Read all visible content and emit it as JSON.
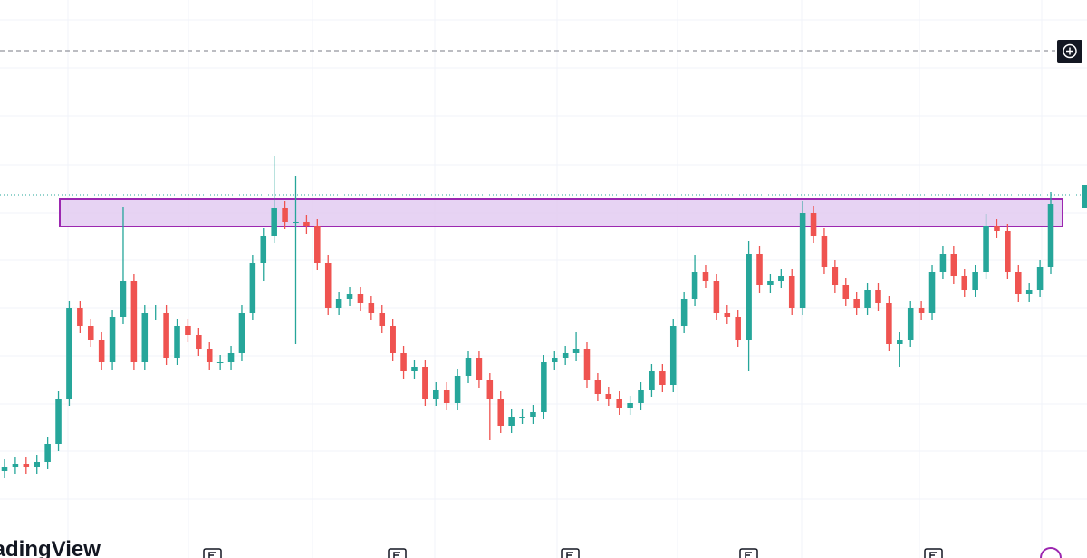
{
  "watermark": "TradingView",
  "chart_data": {
    "type": "candlestick",
    "ylim": [
      0,
      616
    ],
    "up_color": "#26a69a",
    "down_color": "#ef5350",
    "open": [
      96,
      101,
      104,
      101,
      106,
      126,
      176,
      276,
      256,
      241,
      216,
      266,
      306,
      216,
      271,
      271,
      221,
      256,
      246,
      231,
      216,
      216,
      226,
      271,
      326,
      356,
      386,
      371,
      371,
      366,
      326,
      276,
      286,
      291,
      281,
      271,
      256,
      226,
      206,
      211,
      176,
      186,
      171,
      201,
      221,
      196,
      176,
      146,
      156,
      156,
      161,
      216,
      221,
      226,
      231,
      196,
      181,
      176,
      166,
      171,
      186,
      206,
      191,
      256,
      286,
      316,
      306,
      271,
      266,
      241,
      336,
      301,
      306,
      311,
      276,
      381,
      356,
      321,
      301,
      286,
      276,
      296,
      281,
      236,
      241,
      276,
      271,
      316,
      336,
      311,
      296,
      316,
      366,
      361,
      316,
      291,
      296,
      321
    ],
    "close": [
      101,
      104,
      101,
      106,
      126,
      176,
      276,
      256,
      241,
      216,
      266,
      306,
      216,
      271,
      271,
      221,
      256,
      246,
      231,
      216,
      216,
      226,
      271,
      326,
      356,
      386,
      371,
      371,
      366,
      326,
      276,
      286,
      291,
      281,
      271,
      256,
      226,
      206,
      211,
      176,
      186,
      171,
      201,
      221,
      196,
      176,
      146,
      156,
      156,
      161,
      216,
      221,
      226,
      231,
      196,
      181,
      176,
      166,
      171,
      186,
      206,
      191,
      256,
      286,
      316,
      306,
      271,
      266,
      241,
      336,
      301,
      306,
      311,
      276,
      381,
      356,
      321,
      301,
      286,
      276,
      296,
      281,
      236,
      241,
      276,
      271,
      316,
      336,
      311,
      296,
      316,
      366,
      361,
      316,
      291,
      296,
      321,
      391
    ],
    "high": [
      109,
      112,
      112,
      114,
      134,
      184,
      284,
      284,
      264,
      249,
      274,
      388,
      314,
      279,
      279,
      279,
      264,
      264,
      254,
      239,
      224,
      234,
      279,
      334,
      364,
      444,
      394,
      422,
      379,
      374,
      334,
      294,
      299,
      299,
      289,
      279,
      264,
      234,
      219,
      219,
      194,
      194,
      209,
      229,
      229,
      204,
      184,
      164,
      164,
      169,
      224,
      229,
      234,
      250,
      239,
      204,
      189,
      184,
      179,
      194,
      214,
      214,
      264,
      294,
      334,
      324,
      314,
      279,
      274,
      350,
      344,
      314,
      319,
      319,
      394,
      389,
      364,
      329,
      309,
      294,
      304,
      304,
      289,
      249,
      284,
      284,
      324,
      344,
      344,
      319,
      324,
      380,
      374,
      369,
      324,
      304,
      329,
      404
    ],
    "low": [
      88,
      93,
      93,
      93,
      98,
      118,
      168,
      248,
      233,
      208,
      208,
      258,
      208,
      208,
      263,
      213,
      213,
      238,
      223,
      208,
      208,
      208,
      218,
      263,
      306,
      348,
      363,
      236,
      358,
      318,
      268,
      268,
      278,
      273,
      263,
      248,
      218,
      198,
      198,
      168,
      168,
      163,
      163,
      193,
      188,
      130,
      138,
      138,
      148,
      148,
      153,
      208,
      213,
      218,
      188,
      173,
      168,
      158,
      158,
      163,
      178,
      183,
      183,
      248,
      278,
      298,
      263,
      258,
      233,
      206,
      293,
      293,
      298,
      268,
      268,
      348,
      313,
      293,
      278,
      268,
      268,
      273,
      228,
      211,
      233,
      263,
      263,
      308,
      303,
      288,
      288,
      308,
      353,
      308,
      283,
      283,
      288,
      313
    ]
  }
}
